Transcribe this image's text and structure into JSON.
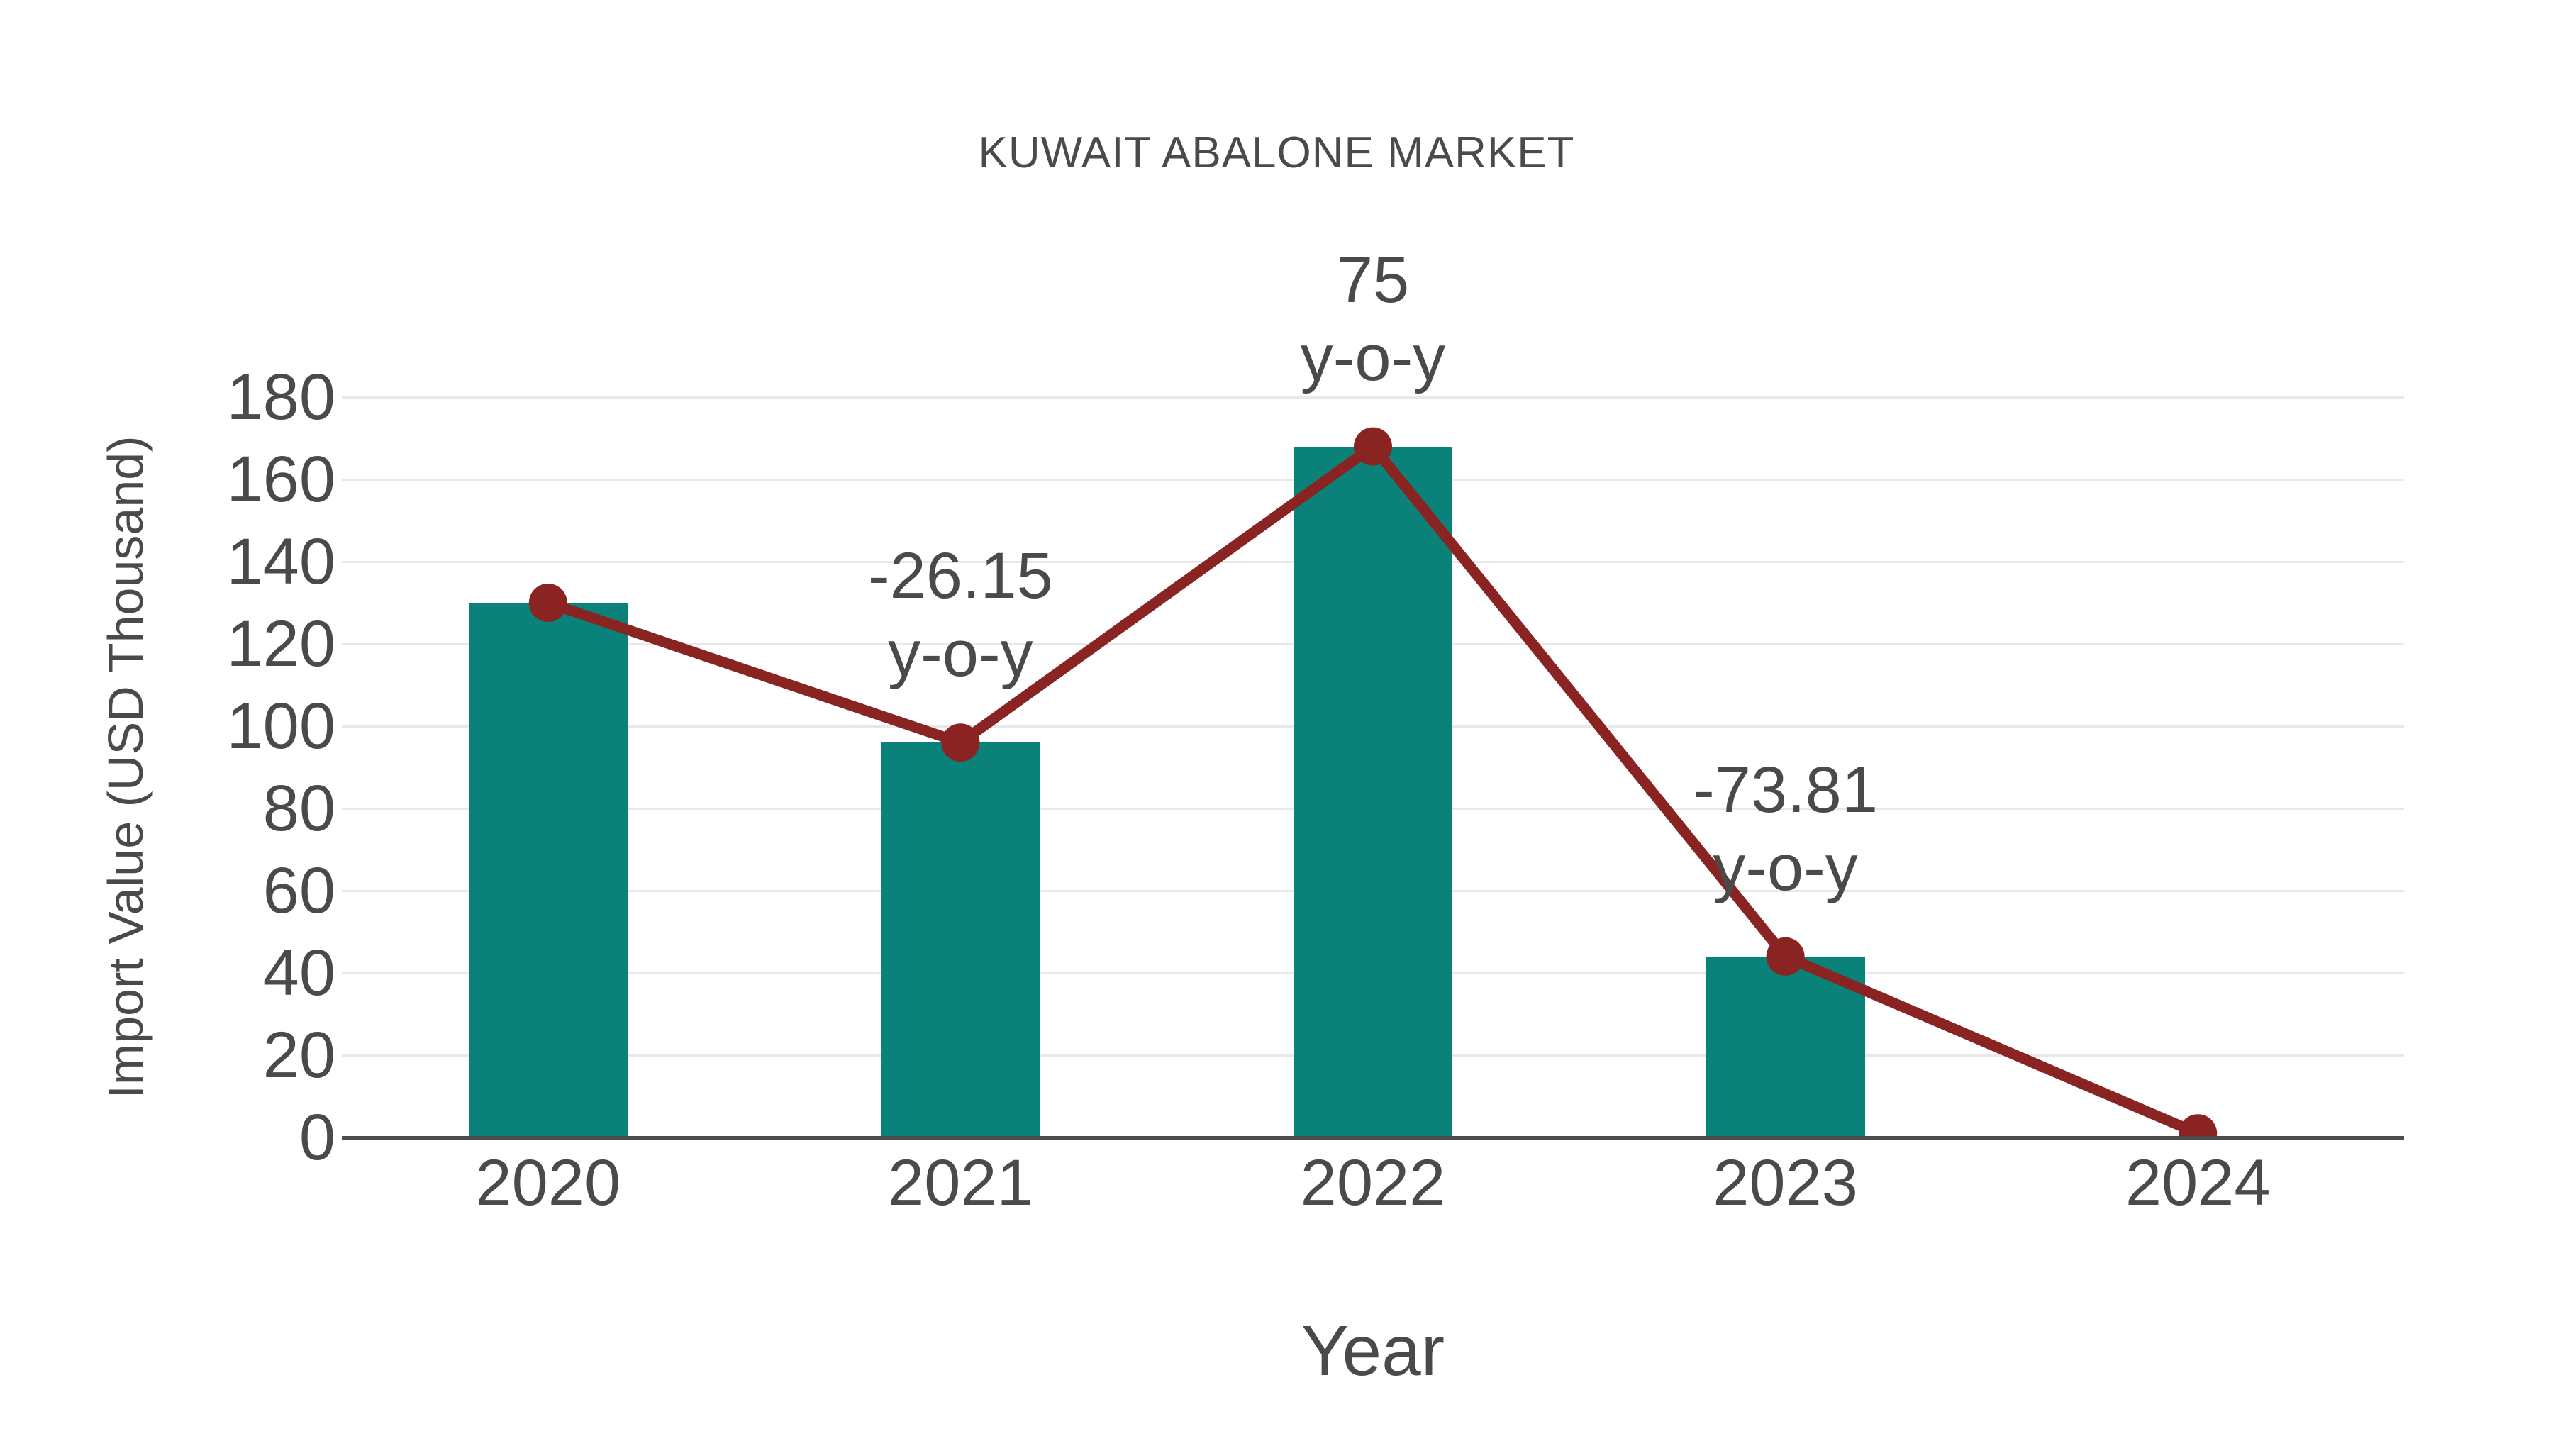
{
  "chart_data": {
    "type": "bar",
    "subtype": "bar-with-line-overlay",
    "title": "KUWAIT ABALONE MARKET",
    "xlabel": "Year",
    "ylabel": "Import Value (USD Thousand)",
    "categories": [
      "2020",
      "2021",
      "2022",
      "2023",
      "2024"
    ],
    "series": [
      {
        "name": "import-value-bars",
        "type": "bar",
        "values": [
          130,
          96,
          168,
          44,
          1
        ]
      },
      {
        "name": "import-value-line",
        "type": "line",
        "values": [
          130,
          96,
          168,
          44,
          1
        ]
      }
    ],
    "annotations": [
      {
        "category": "2021",
        "lines": [
          "-26.15",
          "y-o-y"
        ]
      },
      {
        "category": "2022",
        "lines": [
          "75",
          "y-o-y"
        ]
      },
      {
        "category": "2023",
        "lines": [
          "-73.81",
          "y-o-y"
        ]
      }
    ],
    "ylim": [
      0,
      180
    ],
    "ytick_step": 20,
    "yticks": [
      0,
      20,
      40,
      60,
      80,
      100,
      120,
      140,
      160,
      180
    ],
    "grid": "horizontal",
    "legend": "none",
    "colors": {
      "bar": "#0a8179",
      "line": "#8a2423",
      "marker": "#8a2423",
      "text": "#4a4a4a",
      "grid": "#e8e8e8",
      "axis": "#4d4d4d",
      "background": "#ffffff"
    }
  }
}
